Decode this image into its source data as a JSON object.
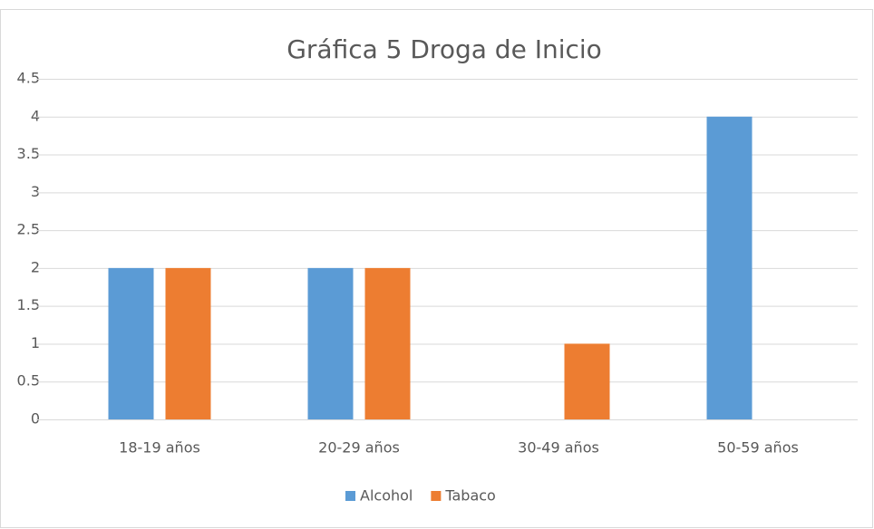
{
  "chart_data": {
    "type": "bar",
    "title": "Gráfica 5 Droga de Inicio",
    "categories": [
      "18-19 años",
      "20-29 años",
      "30-49 años",
      "50-59 años"
    ],
    "series": [
      {
        "name": "Alcohol",
        "color": "#5b9bd5",
        "values": [
          2,
          2,
          0,
          4
        ]
      },
      {
        "name": "Tabaco",
        "color": "#ed7d31",
        "values": [
          2,
          2,
          1,
          0
        ]
      }
    ],
    "ylim": [
      0,
      4.5
    ],
    "yticks": [
      0,
      0.5,
      1,
      1.5,
      2,
      2.5,
      3,
      3.5,
      4,
      4.5
    ],
    "grid": true,
    "legend": "bottom"
  }
}
